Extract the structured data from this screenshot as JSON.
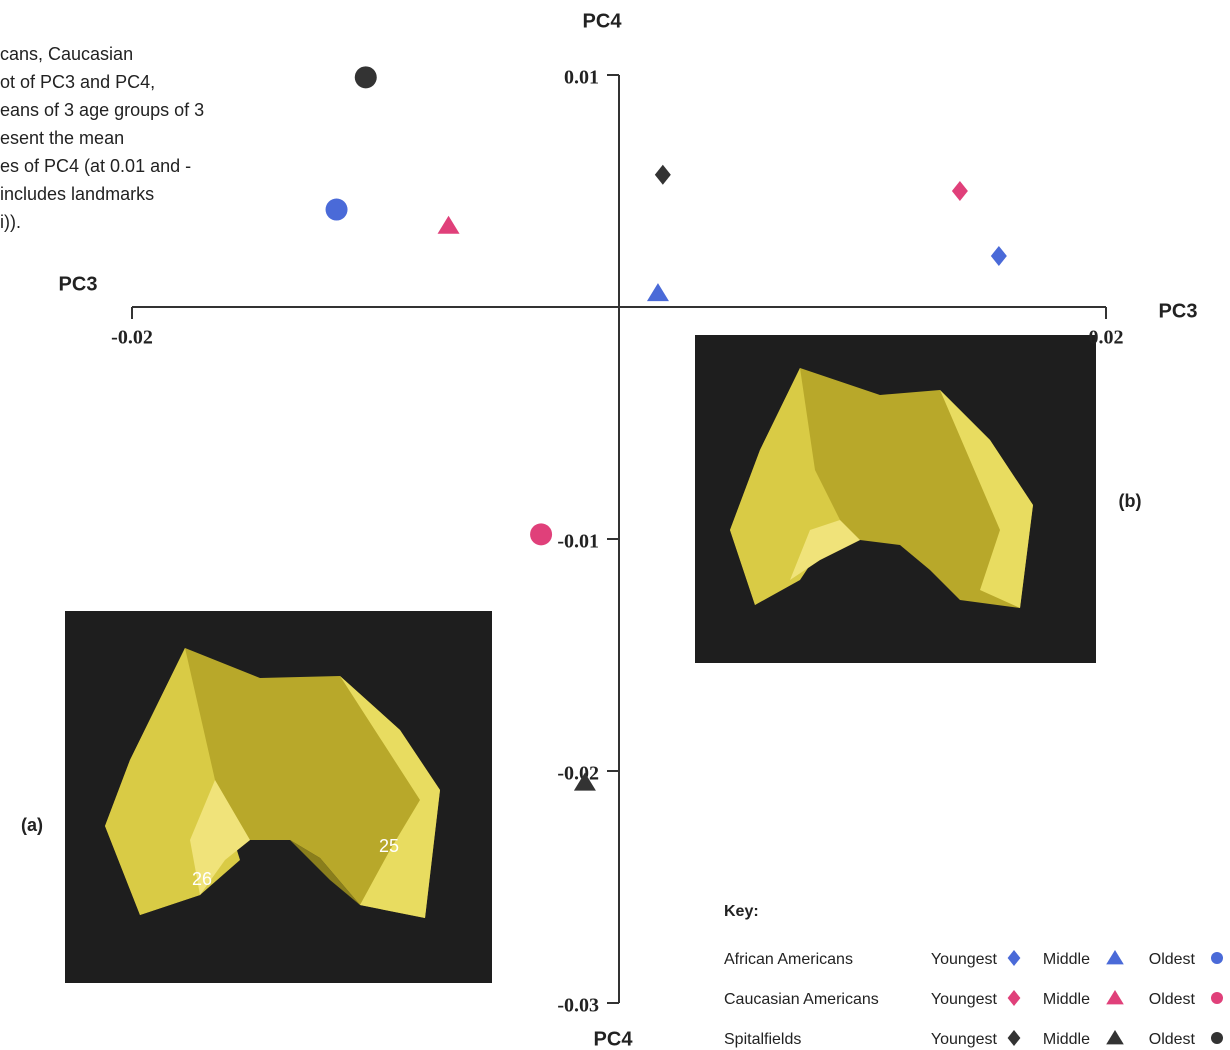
{
  "chart_data": {
    "type": "scatter",
    "caption": [
      "cans, Caucasian",
      "ot of PC3 and PC4,",
      "eans of 3 age groups of 3",
      "esent the mean",
      "es of PC4 (at 0.01 and -",
      "includes landmarks",
      "i))."
    ],
    "x_label": "PC3",
    "y_label": "PC4",
    "xlim": [
      -0.02,
      0.02
    ],
    "ylim": [
      -0.03,
      0.01
    ],
    "xticks": [
      -0.02,
      0.02
    ],
    "yticks": [
      0.01,
      -0.01,
      -0.02,
      -0.03
    ],
    "legend_title": "Key:",
    "series": [
      {
        "name": "African Americans",
        "color": "#4a6ad8",
        "points": [
          {
            "label": "Youngest",
            "marker": "diamond",
            "x": 0.0156,
            "y": 0.0022
          },
          {
            "label": "Middle",
            "marker": "triangle",
            "x": 0.0016,
            "y": 0.0006
          },
          {
            "label": "Oldest",
            "marker": "circle",
            "x": -0.0116,
            "y": 0.0042
          }
        ]
      },
      {
        "name": "Caucasian Americans",
        "color": "#e0407a",
        "points": [
          {
            "label": "Youngest",
            "marker": "diamond",
            "x": 0.014,
            "y": 0.005
          },
          {
            "label": "Middle",
            "marker": "triangle",
            "x": -0.007,
            "y": 0.0035
          },
          {
            "label": "Oldest",
            "marker": "circle",
            "x": -0.0032,
            "y": -0.0098
          }
        ]
      },
      {
        "name": "Spitalfields",
        "color": "#333333",
        "points": [
          {
            "label": "Youngest",
            "marker": "diamond",
            "x": 0.0018,
            "y": 0.0057
          },
          {
            "label": "Middle",
            "marker": "triangle",
            "x": -0.0014,
            "y": -0.0205
          },
          {
            "label": "Oldest",
            "marker": "circle",
            "x": -0.0104,
            "y": 0.0099
          }
        ]
      }
    ],
    "insets": [
      {
        "label": "(a)",
        "landmarks": [
          "26",
          "25"
        ]
      },
      {
        "label": "(b)"
      }
    ]
  }
}
